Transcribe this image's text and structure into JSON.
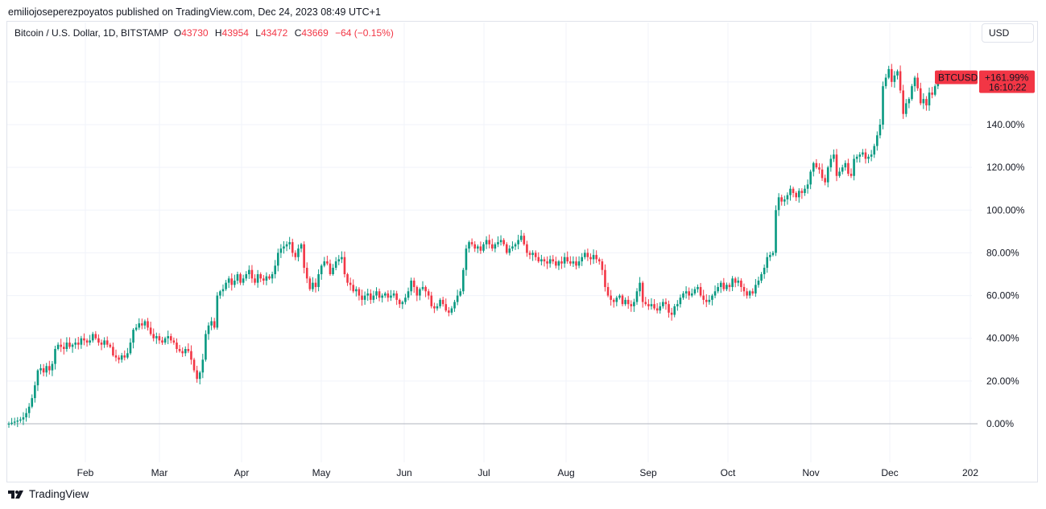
{
  "header": {
    "publisher_line": "emiliojoseperezpoyatos published on TradingView.com, Dec 24, 2023 08:49 UTC+1"
  },
  "legend": {
    "symbol": "Bitcoin / U.S. Dollar, 1D, BITSTAMP",
    "o_key": "O",
    "o_val": "43730",
    "h_key": "H",
    "h_val": "43954",
    "l_key": "L",
    "l_val": "43472",
    "c_key": "C",
    "c_val": "43669",
    "change": "−64 (−0.15%)"
  },
  "currency_button": "USD",
  "price_label": {
    "symbol": "BTCUSD",
    "value": "+161.99%",
    "countdown": "16:10:22"
  },
  "footer": {
    "brand": "TradingView"
  },
  "colors": {
    "up": "#089981",
    "down": "#f23645",
    "grid": "#f0f3fa",
    "baseline": "#b2b5be"
  },
  "chart_data": {
    "type": "candlestick",
    "y_unit": "percent change",
    "ylim": [
      -8,
      172
    ],
    "y_ticks": [
      {
        "value": 0,
        "label": "0.00%"
      },
      {
        "value": 20,
        "label": "20.00%"
      },
      {
        "value": 40,
        "label": "40.00%"
      },
      {
        "value": 60,
        "label": "60.00%"
      },
      {
        "value": 80,
        "label": "80.00%"
      },
      {
        "value": 100,
        "label": "100.00%"
      },
      {
        "value": 120,
        "label": "120.00%"
      },
      {
        "value": 140,
        "label": "140.00%"
      }
    ],
    "x_ticks": [
      "Feb",
      "Mar",
      "Apr",
      "May",
      "Jun",
      "Jul",
      "Aug",
      "Sep",
      "Oct",
      "Nov",
      "Dec",
      "202"
    ],
    "grid": true,
    "baseline": 0,
    "last_value": 161.99,
    "series_closes": [
      0,
      0.5,
      1,
      1.5,
      2,
      3,
      5,
      8,
      12,
      18,
      25,
      26,
      24,
      27,
      25,
      28,
      35,
      37,
      36,
      35,
      38,
      36,
      37,
      38,
      37,
      40,
      39,
      38,
      39,
      42,
      40,
      38,
      37,
      39,
      37,
      36,
      32,
      31,
      30,
      32,
      31,
      33,
      38,
      44,
      45,
      47,
      46,
      48,
      45,
      42,
      40,
      41,
      39,
      38,
      40,
      41,
      39,
      38,
      35,
      34,
      33,
      35,
      34,
      30,
      25,
      21,
      24,
      30,
      42,
      46,
      48,
      45,
      60,
      62,
      63,
      66,
      68,
      65,
      67,
      70,
      66,
      68,
      70,
      72,
      68,
      66,
      70,
      68,
      67,
      69,
      68,
      70,
      74,
      80,
      82,
      83,
      84,
      85,
      80,
      78,
      82,
      84,
      73,
      68,
      63,
      66,
      64,
      70,
      74,
      76,
      75,
      70,
      73,
      76,
      77,
      78,
      70,
      66,
      65,
      62,
      63,
      60,
      58,
      60,
      61,
      58,
      60,
      62,
      59,
      60,
      61,
      59,
      60,
      61,
      58,
      56,
      57,
      59,
      62,
      67,
      64,
      60,
      63,
      64,
      62,
      60,
      55,
      54,
      55,
      58,
      56,
      53,
      52,
      54,
      57,
      60,
      62,
      72,
      82,
      85,
      84,
      82,
      83,
      81,
      84,
      86,
      84,
      82,
      84,
      85,
      86,
      84,
      80,
      82,
      83,
      84,
      86,
      88,
      84,
      80,
      79,
      80,
      78,
      76,
      77,
      76,
      75,
      77,
      76,
      74,
      76,
      75,
      78,
      76,
      75,
      76,
      74,
      76,
      78,
      80,
      78,
      77,
      79,
      77,
      76,
      72,
      64,
      60,
      58,
      57,
      59,
      60,
      56,
      58,
      56,
      55,
      57,
      62,
      66,
      57,
      56,
      55,
      56,
      54,
      53,
      55,
      57,
      56,
      52,
      51,
      55,
      56,
      59,
      61,
      62,
      60,
      61,
      63,
      64,
      60,
      58,
      57,
      58,
      60,
      62,
      64,
      66,
      63,
      65,
      64,
      68,
      66,
      67,
      64,
      62,
      60,
      62,
      61,
      65,
      67,
      70,
      73,
      78,
      79,
      80,
      100,
      106,
      104,
      105,
      107,
      110,
      108,
      106,
      109,
      108,
      110,
      112,
      118,
      122,
      120,
      119,
      115,
      113,
      120,
      124,
      126,
      116,
      118,
      120,
      122,
      117,
      116,
      124,
      125,
      126,
      127,
      124,
      125,
      126,
      130,
      135,
      140,
      158,
      162,
      166,
      160,
      163,
      165,
      156,
      145,
      150,
      152,
      158,
      162,
      157,
      150,
      152,
      149,
      155,
      154,
      158,
      162,
      164,
      163
    ]
  }
}
